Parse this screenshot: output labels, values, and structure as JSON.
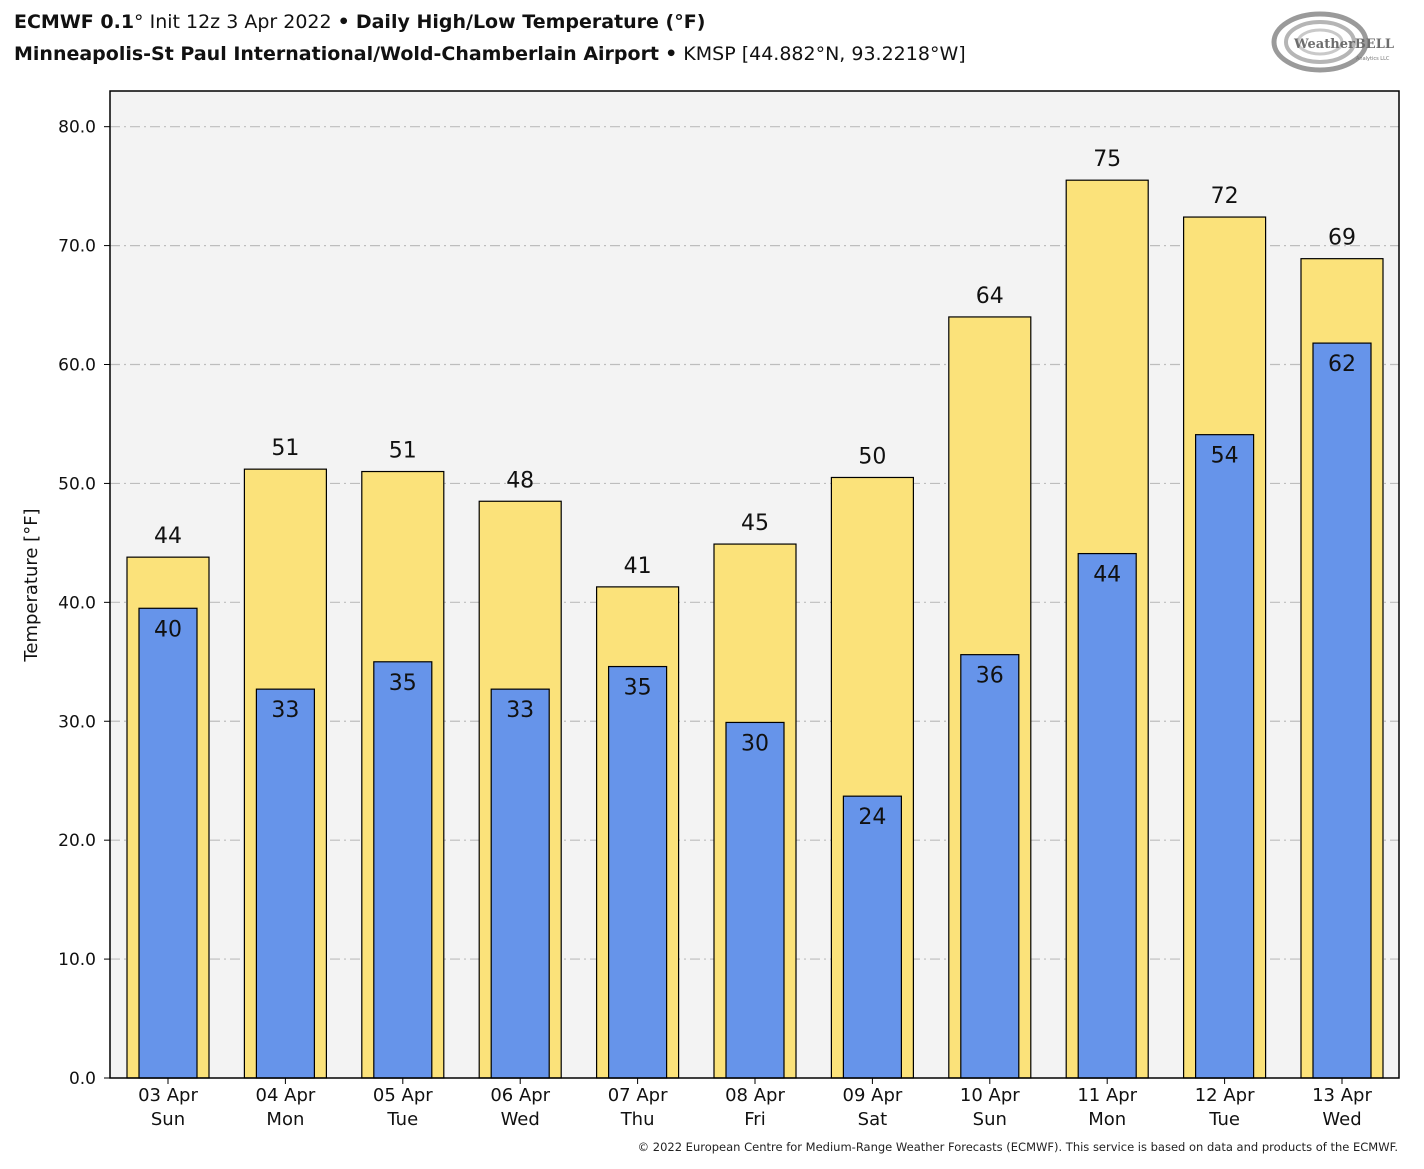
{
  "header": {
    "model": "ECMWF 0.1",
    "deg": "°",
    "init": "Init 12z 3 Apr 2022",
    "bullet": "•",
    "product": "Daily High/Low Temperature (°F)",
    "station_name": "Minneapolis-St Paul International/Wold-Chamberlain Airport",
    "station_info": "KMSP [44.882°N, 93.2218°W]"
  },
  "logo": {
    "text": "WeatherBELL",
    "sub": "Analytics LLC"
  },
  "footer": {
    "copyright": "© 2022 European Centre for Medium-Range Weather Forecasts (ECMWF). This service is based on data and products of the ECMWF."
  },
  "colors": {
    "high": "#fbe27a",
    "low": "#6694ea",
    "plot_bg": "#f3f3f3",
    "grid": "#bdbdbd"
  },
  "chart_data": {
    "type": "bar",
    "title": "Daily High/Low Temperature (°F)",
    "ylabel": "Temperature [°F]",
    "ylim": [
      0,
      83
    ],
    "yticks": [
      "0.0",
      "10.0",
      "20.0",
      "30.0",
      "40.0",
      "50.0",
      "60.0",
      "70.0",
      "80.0"
    ],
    "ytick_values": [
      0,
      10,
      20,
      30,
      40,
      50,
      60,
      70,
      80
    ],
    "grid": true,
    "categories": [
      [
        "03 Apr",
        "Sun"
      ],
      [
        "04 Apr",
        "Mon"
      ],
      [
        "05 Apr",
        "Tue"
      ],
      [
        "06 Apr",
        "Wed"
      ],
      [
        "07 Apr",
        "Thu"
      ],
      [
        "08 Apr",
        "Fri"
      ],
      [
        "09 Apr",
        "Sat"
      ],
      [
        "10 Apr",
        "Sun"
      ],
      [
        "11 Apr",
        "Mon"
      ],
      [
        "12 Apr",
        "Tue"
      ],
      [
        "13 Apr",
        "Wed"
      ]
    ],
    "series": [
      {
        "key": "high",
        "values": [
          43.8,
          51.2,
          51.0,
          48.5,
          41.3,
          44.9,
          50.5,
          64.0,
          75.5,
          72.4,
          68.9
        ],
        "labels": [
          "44",
          "51",
          "51",
          "48",
          "41",
          "45",
          "50",
          "64",
          "75",
          "72",
          "69"
        ]
      },
      {
        "key": "low",
        "values": [
          39.5,
          32.7,
          35.0,
          32.7,
          34.6,
          29.9,
          23.7,
          35.6,
          44.1,
          54.1,
          61.8
        ],
        "labels": [
          "40",
          "33",
          "35",
          "33",
          "35",
          "30",
          "24",
          "36",
          "44",
          "54",
          "62"
        ]
      }
    ]
  }
}
